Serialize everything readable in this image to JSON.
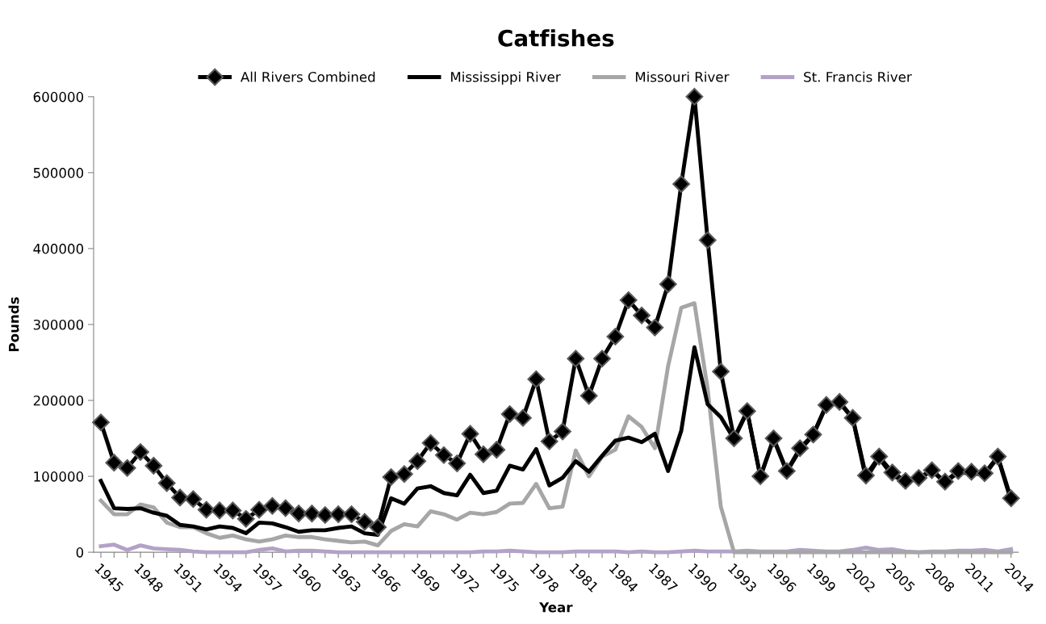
{
  "chart_data": {
    "type": "line",
    "title": "Catfishes",
    "xlabel": "Year",
    "ylabel": "Pounds",
    "categories": [
      "1945",
      null,
      null,
      "1948",
      null,
      null,
      "1951",
      null,
      null,
      "1954",
      null,
      null,
      "1957",
      null,
      null,
      "1960",
      null,
      null,
      "1963",
      null,
      null,
      "1966",
      null,
      null,
      "1969",
      null,
      null,
      "1972",
      null,
      null,
      "1975",
      null,
      null,
      "1978",
      null,
      null,
      "1981",
      null,
      null,
      "1984",
      null,
      null,
      "1987",
      null,
      null,
      "1990",
      null,
      null,
      "1993",
      null,
      null,
      "1996",
      null,
      null,
      "1999",
      null,
      null,
      "2002",
      null,
      null,
      "2005",
      null,
      null,
      "2008",
      null,
      null,
      "2011",
      null,
      null,
      "2014"
    ],
    "ylim": [
      0,
      600000
    ],
    "yticks": [
      0,
      100000,
      200000,
      300000,
      400000,
      500000,
      600000
    ],
    "grid": false,
    "legend": "top",
    "line_style": "solid",
    "series": [
      {
        "name": "All Rivers Combined",
        "color": "#000000",
        "marker": "diamond",
        "values": [
          171000,
          118000,
          111000,
          132000,
          114000,
          91000,
          72000,
          70000,
          56000,
          55000,
          55000,
          44000,
          56000,
          61000,
          58000,
          51000,
          51000,
          49000,
          50000,
          50000,
          40000,
          33000,
          99000,
          103000,
          120000,
          144000,
          128000,
          117000,
          156000,
          129000,
          135000,
          182000,
          177000,
          228000,
          146000,
          159000,
          255000,
          206000,
          255000,
          284000,
          332000,
          312000,
          296000,
          353000,
          485000,
          600000,
          411000,
          238000,
          150000,
          186000,
          100000,
          150000,
          107000,
          137000,
          155000,
          194000,
          198000,
          177000,
          101000,
          126000,
          105000,
          94000,
          98000,
          108000,
          93000,
          107000,
          106000,
          104000,
          126000,
          71000
        ]
      },
      {
        "name": "Mississippi River",
        "color": "#000000",
        "marker": "none",
        "values": [
          94000,
          58000,
          57000,
          58000,
          52000,
          48000,
          36000,
          34000,
          30000,
          34000,
          32000,
          25000,
          39000,
          38000,
          33000,
          27000,
          29000,
          29000,
          32000,
          34000,
          25000,
          23000,
          71000,
          64000,
          84000,
          87000,
          78000,
          75000,
          102000,
          78000,
          81000,
          114000,
          109000,
          136000,
          88000,
          98000,
          120000,
          106000,
          127000,
          147000,
          151000,
          145000,
          156000,
          107000,
          160000,
          270000,
          195000,
          178000,
          149000,
          185000,
          99000,
          149000,
          106000,
          135000,
          154000,
          193000,
          197000,
          176000,
          97000,
          124000,
          101000,
          93000,
          97000,
          107000,
          92000,
          105000,
          104000,
          102000,
          125000,
          68000
        ]
      },
      {
        "name": "Missouri River",
        "color": "#a6a6a6",
        "marker": "none",
        "values": [
          68000,
          50000,
          50000,
          63000,
          59000,
          39000,
          33000,
          33000,
          25000,
          19000,
          22000,
          17000,
          14000,
          17000,
          22000,
          20000,
          20000,
          17000,
          15000,
          13000,
          14000,
          9000,
          28000,
          37000,
          34000,
          54000,
          50000,
          43000,
          52000,
          50000,
          53000,
          64000,
          65000,
          90000,
          58000,
          60000,
          134000,
          100000,
          126000,
          135000,
          179000,
          165000,
          137000,
          245000,
          322000,
          328000,
          215000,
          60000,
          0,
          0,
          0,
          0,
          0,
          0,
          0,
          0,
          0,
          0,
          0,
          0,
          0,
          0,
          0,
          0,
          0,
          0,
          0,
          0,
          0,
          0
        ]
      },
      {
        "name": "St. Francis River",
        "color": "#b3a2c7",
        "marker": "none",
        "values": [
          8000,
          10000,
          3000,
          9000,
          5000,
          4000,
          3000,
          1000,
          0,
          0,
          0,
          0,
          3000,
          5000,
          1000,
          2000,
          2000,
          1000,
          0,
          0,
          0,
          0,
          0,
          0,
          0,
          0,
          0,
          0,
          0,
          1000,
          1000,
          2000,
          1000,
          0,
          0,
          0,
          1000,
          1000,
          1000,
          1000,
          0,
          1000,
          0,
          0,
          1000,
          2000,
          1000,
          1000,
          1000,
          2000,
          1000,
          1000,
          1000,
          3000,
          2000,
          1000,
          1000,
          3000,
          6000,
          3000,
          4000,
          1000,
          0,
          1000,
          1000,
          2000,
          2000,
          3000,
          1000,
          4000
        ]
      }
    ]
  }
}
